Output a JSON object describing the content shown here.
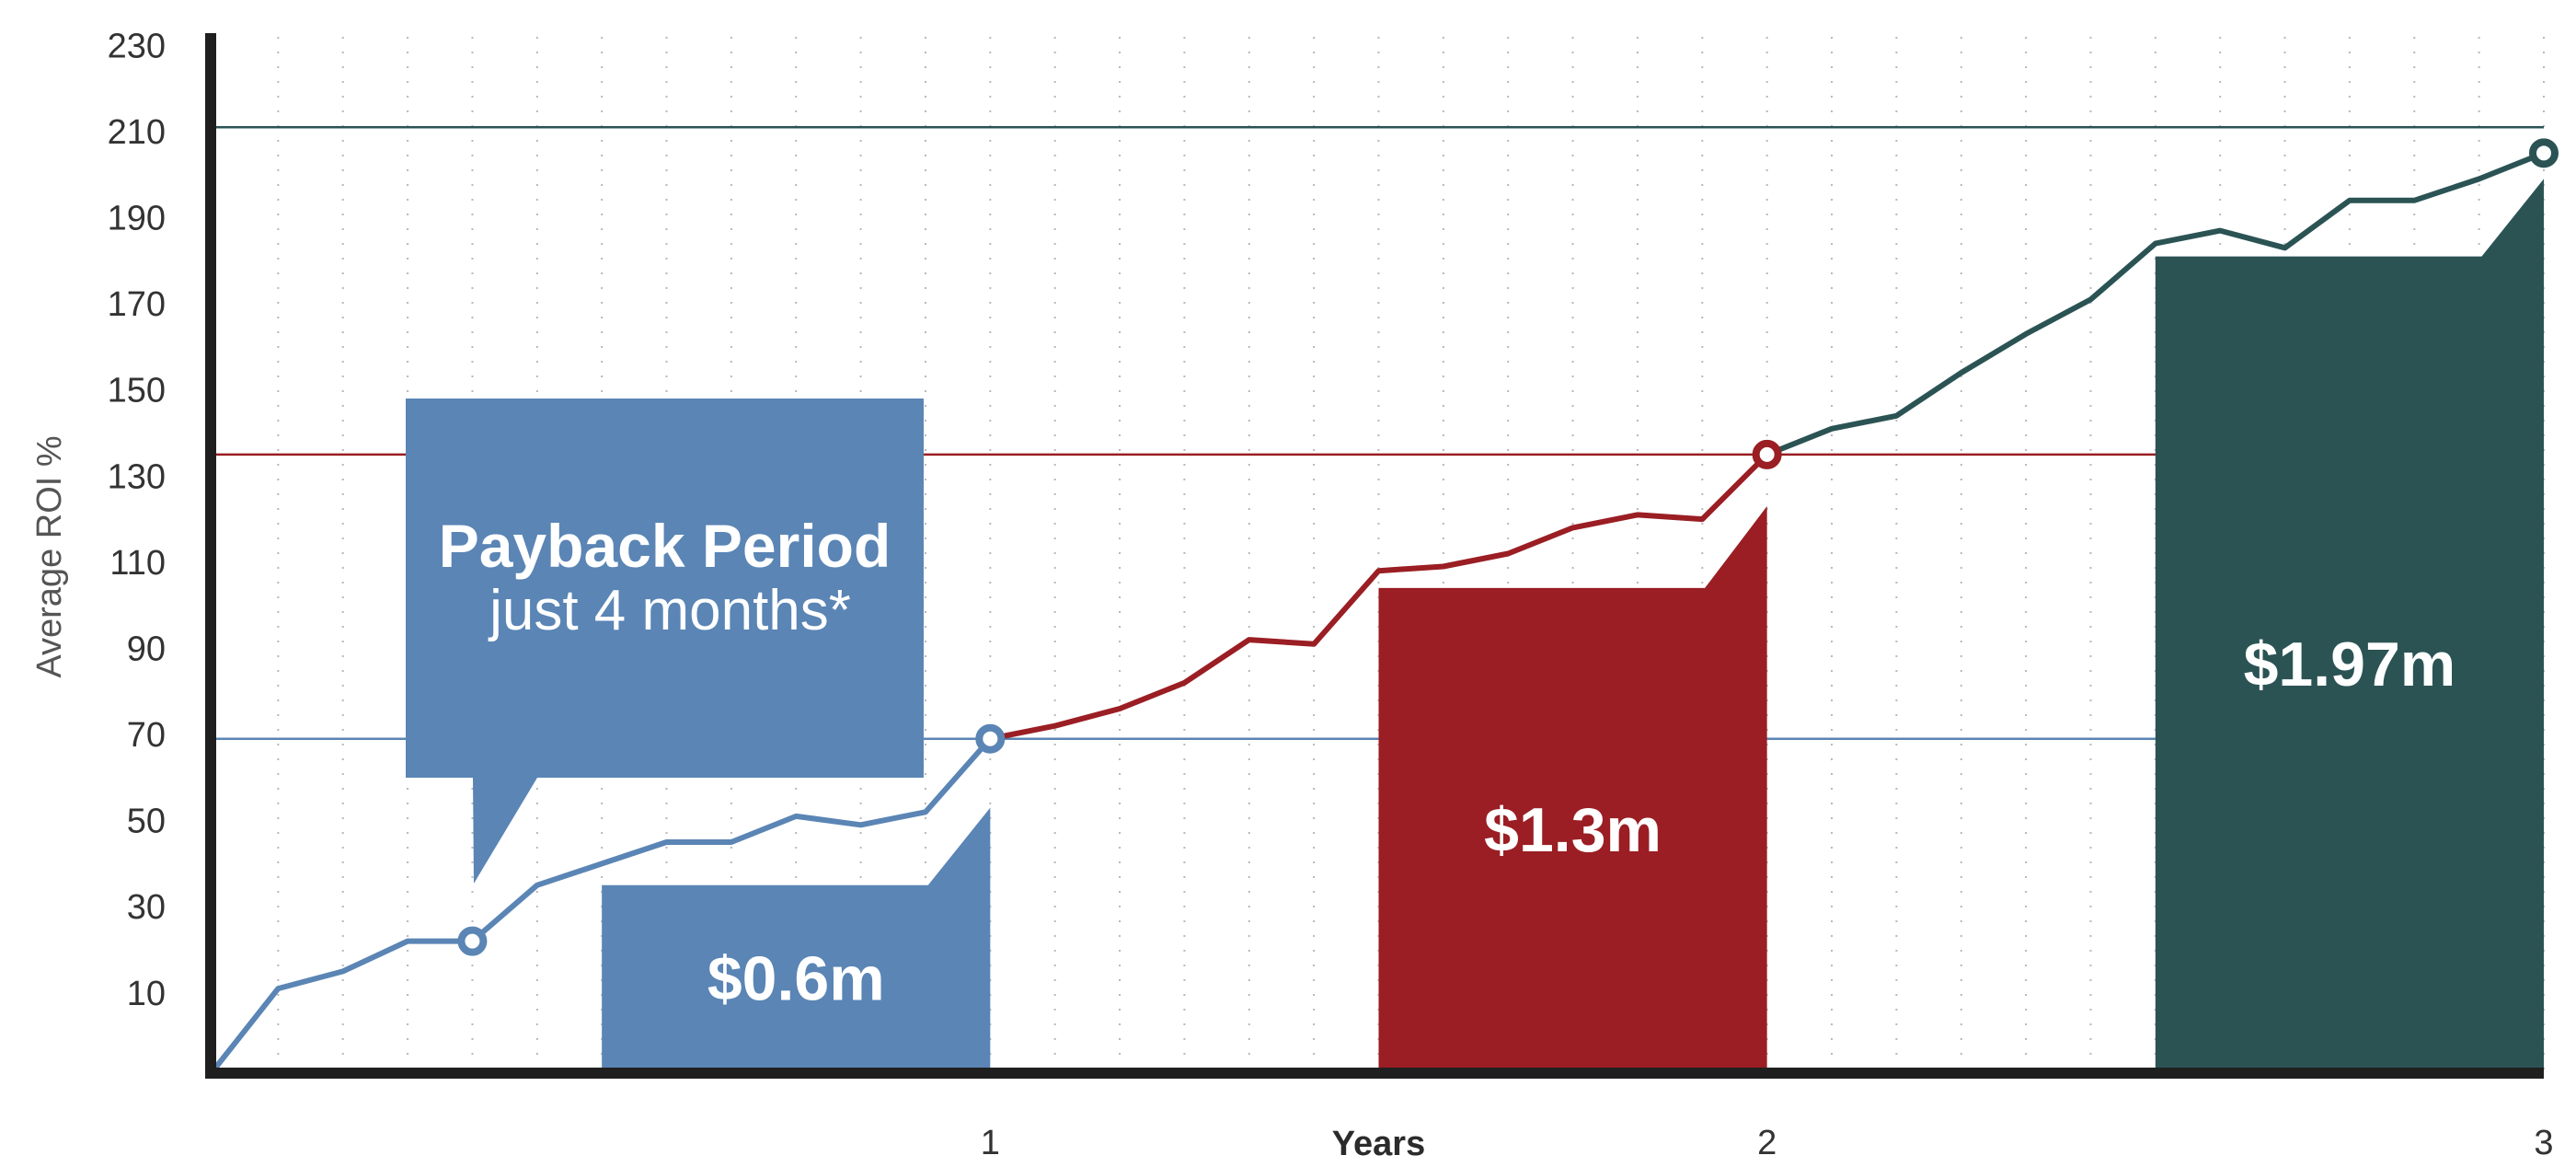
{
  "colors": {
    "year1": "#5a85b5",
    "year2": "#9a1e23",
    "year3": "#2b5354",
    "axis": "#1f1f1f",
    "grid": "#b8b8b8"
  },
  "chart_data": {
    "type": "line",
    "ylabel": "Average ROI %",
    "xlabel": "Years",
    "xlim": [
      0,
      3
    ],
    "ylim": [
      -8,
      232
    ],
    "yticks": [
      10,
      30,
      50,
      70,
      90,
      110,
      130,
      150,
      170,
      190,
      210,
      230
    ],
    "xticks": [
      {
        "value": 1,
        "label": "1"
      },
      {
        "value": 2,
        "label": "2"
      },
      {
        "value": 3,
        "label": "3"
      }
    ],
    "grid": "vertical dotted",
    "series": [
      {
        "color": "#5a85b5",
        "points": [
          [
            0,
            -8
          ],
          [
            0.0833,
            11
          ],
          [
            0.1667,
            15
          ],
          [
            0.25,
            22
          ],
          [
            0.3333,
            22
          ],
          [
            0.4167,
            35
          ],
          [
            0.5,
            40
          ],
          [
            0.5833,
            45
          ],
          [
            0.6667,
            45
          ],
          [
            0.75,
            51
          ],
          [
            0.8333,
            49
          ],
          [
            0.9167,
            52
          ],
          [
            1.0,
            69
          ]
        ]
      },
      {
        "color": "#9a1e23",
        "points": [
          [
            1.0,
            69
          ],
          [
            1.0833,
            72
          ],
          [
            1.1667,
            76
          ],
          [
            1.25,
            82
          ],
          [
            1.3333,
            92
          ],
          [
            1.4167,
            91
          ],
          [
            1.5,
            108
          ],
          [
            1.5833,
            109
          ],
          [
            1.6667,
            112
          ],
          [
            1.75,
            118
          ],
          [
            1.8333,
            121
          ],
          [
            1.9167,
            120
          ],
          [
            2.0,
            135
          ]
        ]
      },
      {
        "color": "#2b5354",
        "points": [
          [
            2.0,
            135
          ],
          [
            2.0833,
            141
          ],
          [
            2.1667,
            144
          ],
          [
            2.25,
            154
          ],
          [
            2.3333,
            163
          ],
          [
            2.4167,
            171
          ],
          [
            2.5,
            184
          ],
          [
            2.5833,
            187
          ],
          [
            2.6667,
            183
          ],
          [
            2.75,
            194
          ],
          [
            2.8333,
            194
          ],
          [
            2.9167,
            199
          ],
          [
            3.0,
            205
          ]
        ]
      }
    ],
    "markers": [
      {
        "x": 0.3333,
        "y": 22,
        "color": "#5a85b5"
      },
      {
        "x": 1.0,
        "y": 69,
        "color": "#5a85b5"
      },
      {
        "x": 2.0,
        "y": 135,
        "color": "#9a1e23"
      },
      {
        "x": 3.0,
        "y": 205,
        "color": "#2b5354"
      }
    ],
    "reference_lines": [
      {
        "y": 69,
        "color": "#5a85b5"
      },
      {
        "y": 135,
        "color": "#9a1e23"
      },
      {
        "y": 211,
        "color": "#2b5354"
      }
    ],
    "bars": [
      {
        "label": "$0.6m",
        "x0": 0.5,
        "x1": 1.0,
        "top": 35,
        "peak": 53,
        "color": "#5a85b5"
      },
      {
        "label": "$1.3m",
        "x0": 1.5,
        "x1": 2.0,
        "top": 104,
        "peak": 123,
        "color": "#9a1e23"
      },
      {
        "label": "$1.97m",
        "x0": 2.5,
        "x1": 3.0,
        "top": 181,
        "peak": 199,
        "color": "#2b5354"
      }
    ]
  },
  "callout": {
    "title": "Payback Period",
    "subtitle": "just 4 months*"
  }
}
